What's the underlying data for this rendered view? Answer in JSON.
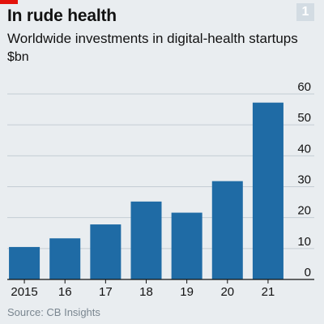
{
  "header": {
    "title": "In rude health",
    "subtitle": "Worldwide investments in digital-health startups",
    "unit": "$bn",
    "badge": "1"
  },
  "footer": {
    "source": "Source: CB Insights"
  },
  "colors": {
    "bar": "#1f6ba5",
    "grid": "#c4cdd4",
    "axis": "#121212",
    "background": "#e9edf0",
    "accent": "#e3120b"
  },
  "chart_data": {
    "type": "bar",
    "categories": [
      "2015",
      "16",
      "17",
      "18",
      "19",
      "20",
      "21"
    ],
    "values": [
      10.5,
      13.3,
      17.8,
      25.2,
      21.6,
      31.8,
      57.2
    ],
    "title": "In rude health",
    "subtitle": "Worldwide investments in digital-health startups",
    "ylabel": "$bn",
    "ylim": [
      0,
      60
    ],
    "yticks": [
      0,
      10,
      20,
      30,
      40,
      50,
      60
    ],
    "grid": true,
    "y_axis_side": "right"
  }
}
